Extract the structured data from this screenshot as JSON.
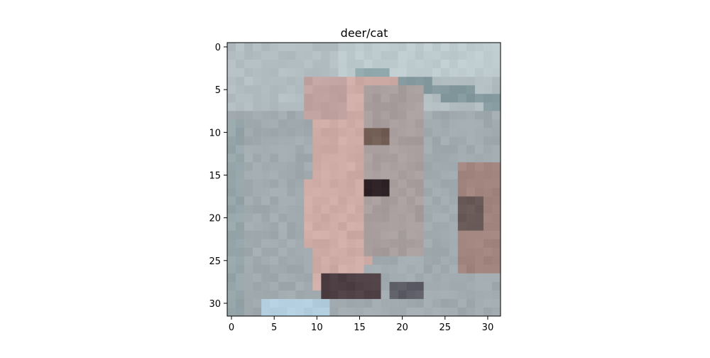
{
  "figure": {
    "title": "deer/cat"
  },
  "image": {
    "resolution": [
      32,
      32
    ],
    "description_colors": {
      "background_gray": "#aab4b6",
      "sky_light": "#c5d1d3",
      "animal_pink": "#d9b4ac",
      "dark_spot": "#3a2a2e",
      "bottom_blue": "#b9d4e4"
    }
  },
  "axes": {
    "x_ticks": [
      "0",
      "5",
      "10",
      "15",
      "20",
      "25",
      "30"
    ],
    "y_ticks": [
      "0",
      "5",
      "10",
      "15",
      "20",
      "25",
      "30"
    ],
    "x_range": [
      -0.5,
      31.5
    ],
    "y_range": [
      -0.5,
      31.5
    ]
  }
}
